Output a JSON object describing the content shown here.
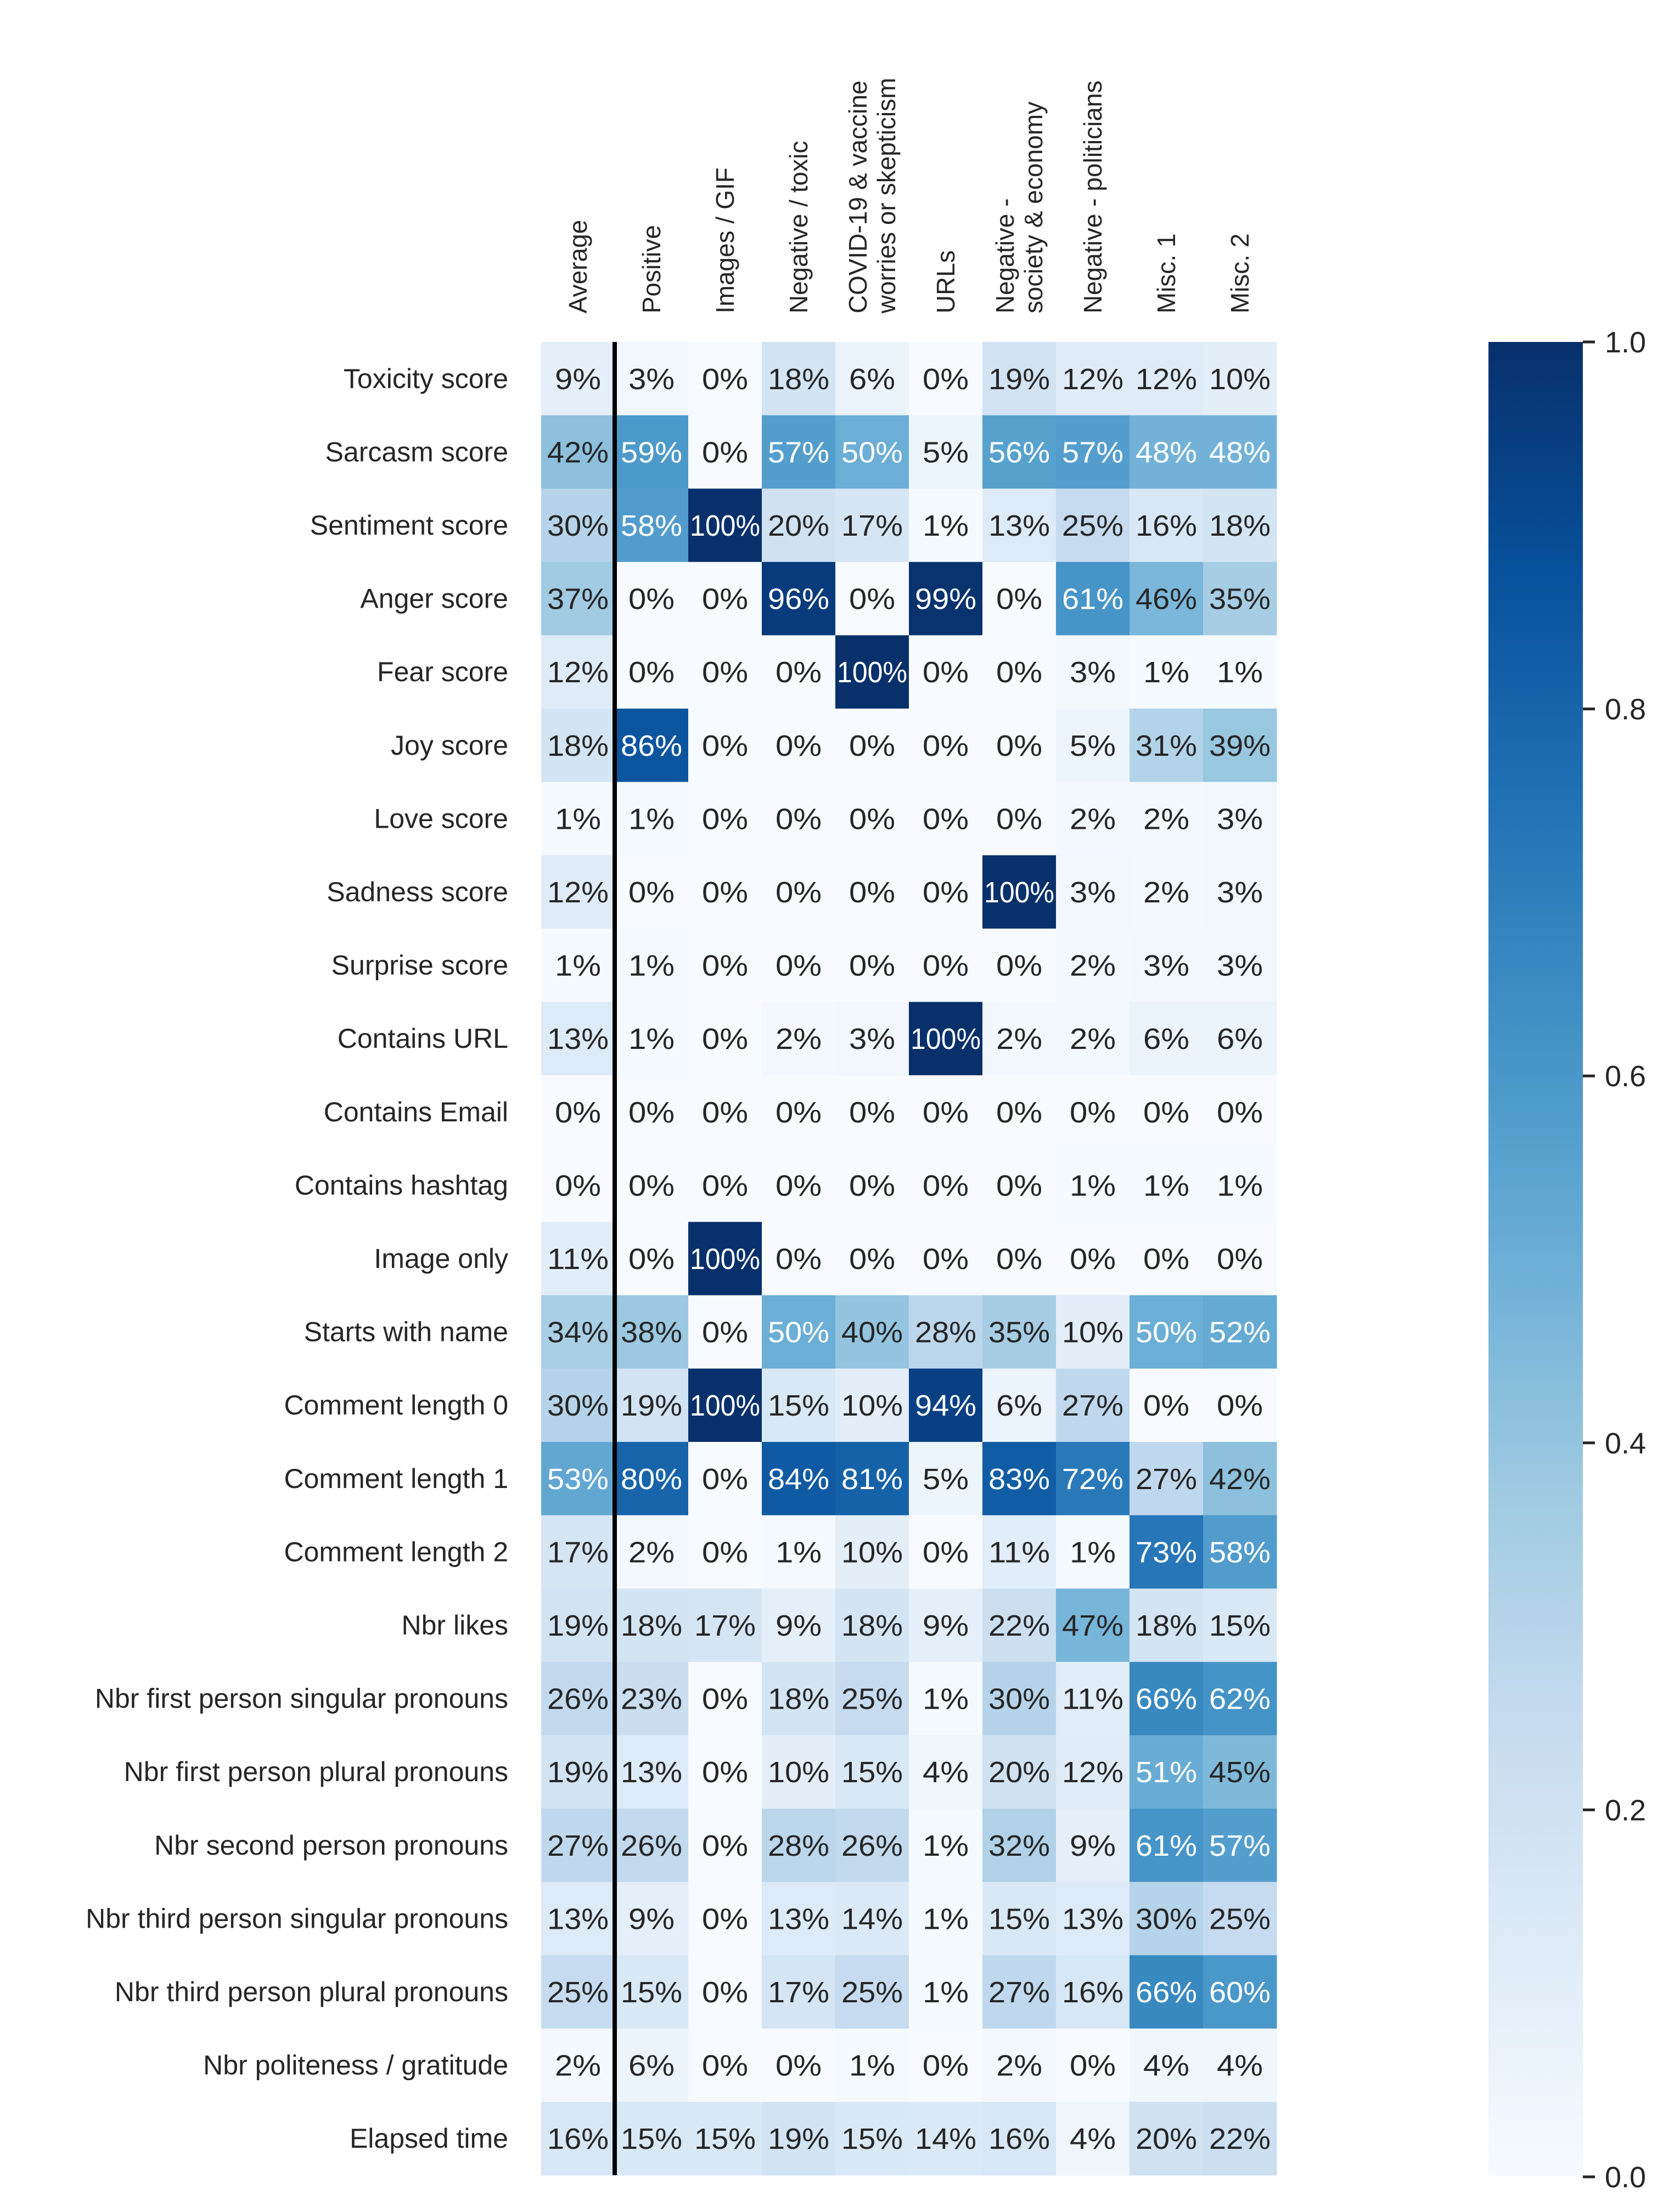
{
  "chart_data": {
    "type": "heatmap",
    "title": "",
    "xlabel": "",
    "ylabel": "",
    "value_format": "percent",
    "columns": [
      [
        "Average"
      ],
      [
        "Positive"
      ],
      [
        "Images / GIF"
      ],
      [
        "Negative / toxic"
      ],
      [
        "COVID-19 & vaccine",
        "worries or skepticism"
      ],
      [
        "URLs"
      ],
      [
        "Negative -",
        "society & economy"
      ],
      [
        "Negative - politicians"
      ],
      [
        "Misc. 1"
      ],
      [
        "Misc. 2"
      ]
    ],
    "rows": [
      "Toxicity score",
      "Sarcasm score",
      "Sentiment score",
      "Anger score",
      "Fear score",
      "Joy score",
      "Love score",
      "Sadness score",
      "Surprise score",
      "Contains URL",
      "Contains Email",
      "Contains hashtag",
      "Image only",
      "Starts with name",
      "Comment length 0",
      "Comment length 1",
      "Comment length 2",
      "Nbr likes",
      "Nbr first person singular pronouns",
      "Nbr first person plural pronouns",
      "Nbr second person pronouns",
      "Nbr third person singular pronouns",
      "Nbr third person plural pronouns",
      "Nbr politeness / gratitude",
      "Elapsed time"
    ],
    "values": [
      [
        9,
        3,
        0,
        18,
        6,
        0,
        19,
        12,
        12,
        10
      ],
      [
        42,
        59,
        0,
        57,
        50,
        5,
        56,
        57,
        48,
        48
      ],
      [
        30,
        58,
        100,
        20,
        17,
        1,
        13,
        25,
        16,
        18
      ],
      [
        37,
        0,
        0,
        96,
        0,
        99,
        0,
        61,
        46,
        35
      ],
      [
        12,
        0,
        0,
        0,
        100,
        0,
        0,
        3,
        1,
        1
      ],
      [
        18,
        86,
        0,
        0,
        0,
        0,
        0,
        5,
        31,
        39
      ],
      [
        1,
        1,
        0,
        0,
        0,
        0,
        0,
        2,
        2,
        3
      ],
      [
        12,
        0,
        0,
        0,
        0,
        0,
        100,
        3,
        2,
        3
      ],
      [
        1,
        1,
        0,
        0,
        0,
        0,
        0,
        2,
        3,
        3
      ],
      [
        13,
        1,
        0,
        2,
        3,
        100,
        2,
        2,
        6,
        6
      ],
      [
        0,
        0,
        0,
        0,
        0,
        0,
        0,
        0,
        0,
        0
      ],
      [
        0,
        0,
        0,
        0,
        0,
        0,
        0,
        1,
        1,
        1
      ],
      [
        11,
        0,
        100,
        0,
        0,
        0,
        0,
        0,
        0,
        0
      ],
      [
        34,
        38,
        0,
        50,
        40,
        28,
        35,
        10,
        50,
        52
      ],
      [
        30,
        19,
        100,
        15,
        10,
        94,
        6,
        27,
        0,
        0
      ],
      [
        53,
        80,
        0,
        84,
        81,
        5,
        83,
        72,
        27,
        42
      ],
      [
        17,
        2,
        0,
        1,
        10,
        0,
        11,
        1,
        73,
        58
      ],
      [
        19,
        18,
        17,
        9,
        18,
        9,
        22,
        47,
        18,
        15
      ],
      [
        26,
        23,
        0,
        18,
        25,
        1,
        30,
        11,
        66,
        62
      ],
      [
        19,
        13,
        0,
        10,
        15,
        4,
        20,
        12,
        51,
        45
      ],
      [
        27,
        26,
        0,
        28,
        26,
        1,
        32,
        9,
        61,
        57
      ],
      [
        13,
        9,
        0,
        13,
        14,
        1,
        15,
        13,
        30,
        25
      ],
      [
        25,
        15,
        0,
        17,
        25,
        1,
        27,
        16,
        66,
        60
      ],
      [
        2,
        6,
        0,
        0,
        1,
        0,
        2,
        0,
        4,
        4
      ],
      [
        16,
        15,
        15,
        19,
        15,
        14,
        16,
        4,
        20,
        22
      ]
    ],
    "colorbar": {
      "range": [
        0.0,
        1.0
      ],
      "ticks": [
        "0.0",
        "0.2",
        "0.4",
        "0.6",
        "0.8",
        "1.0"
      ],
      "colormap": "Blues"
    },
    "separator_after_column": "Average"
  }
}
